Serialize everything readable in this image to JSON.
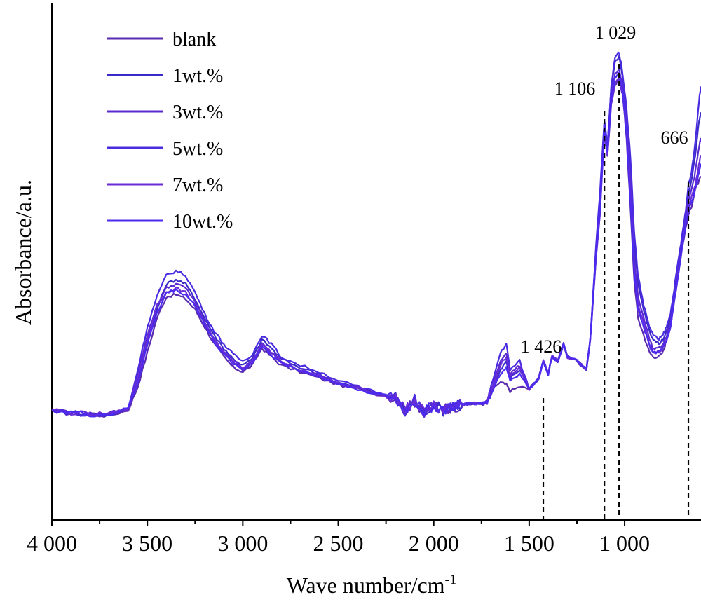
{
  "chart_data": {
    "type": "line",
    "xlabel": "Wave number/cm",
    "xlabel_superscript": "-1",
    "ylabel": "Absorbance/a.u.",
    "x_reversed": true,
    "xlim": [
      4000,
      600
    ],
    "ylim": [
      0,
      100
    ],
    "xticks": [
      {
        "value": 4000,
        "label": "4 000"
      },
      {
        "value": 3500,
        "label": "3 500"
      },
      {
        "value": 3000,
        "label": "3 000"
      },
      {
        "value": 2500,
        "label": "2 500"
      },
      {
        "value": 2000,
        "label": "2 000"
      },
      {
        "value": 1500,
        "label": "1 500"
      },
      {
        "value": 1000,
        "label": "1 000"
      }
    ],
    "y_tick_labels": false,
    "legend_position": "top-left",
    "annotations": [
      {
        "label": "1 426",
        "x": 1426
      },
      {
        "label": "1 106",
        "x": 1106
      },
      {
        "label": "1 029",
        "x": 1029
      },
      {
        "label": "666",
        "x": 666
      }
    ],
    "series": [
      {
        "name": "blank",
        "color": "#5a2bb0",
        "x": [
          4000,
          3900,
          3800,
          3700,
          3600,
          3550,
          3500,
          3450,
          3400,
          3350,
          3300,
          3250,
          3200,
          3150,
          3100,
          3050,
          3000,
          2950,
          2900,
          2850,
          2800,
          2700,
          2600,
          2500,
          2400,
          2300,
          2200,
          2150,
          2100,
          2050,
          2000,
          1950,
          1900,
          1850,
          1800,
          1750,
          1720,
          1700,
          1650,
          1620,
          1600,
          1550,
          1500,
          1450,
          1426,
          1400,
          1380,
          1350,
          1320,
          1300,
          1250,
          1200,
          1180,
          1150,
          1130,
          1106,
          1090,
          1070,
          1050,
          1029,
          1010,
          990,
          970,
          950,
          930,
          900,
          870,
          850,
          820,
          800,
          780,
          760,
          740,
          720,
          700,
          680,
          666,
          650,
          630,
          610,
          600
        ],
        "y": [
          12.5,
          11.8,
          11.8,
          11.3,
          12.5,
          18,
          26,
          34,
          39,
          39.5,
          38.5,
          36,
          32,
          28,
          25,
          22.5,
          21.5,
          23,
          27,
          25,
          23,
          21.5,
          20,
          18.5,
          17.5,
          16.3,
          15.5,
          12.5,
          14.5,
          12,
          13.5,
          12.5,
          13.3,
          13.6,
          14,
          14,
          14,
          17.5,
          19,
          18.5,
          17,
          18,
          17.5,
          20,
          24,
          21,
          25,
          24,
          28,
          25,
          24,
          22,
          29,
          48,
          58,
          78,
          72,
          84,
          88,
          90,
          86,
          76,
          60,
          43,
          34,
          30,
          26,
          25,
          25,
          26,
          29,
          32,
          38,
          44,
          50,
          55,
          58,
          60,
          64,
          66,
          67
        ]
      },
      {
        "name": "1wt.%",
        "color": "#3a2bc8",
        "x": [
          4000,
          3900,
          3800,
          3700,
          3600,
          3550,
          3500,
          3450,
          3400,
          3350,
          3300,
          3250,
          3200,
          3150,
          3100,
          3050,
          3000,
          2950,
          2900,
          2850,
          2800,
          2700,
          2600,
          2500,
          2400,
          2300,
          2200,
          2150,
          2100,
          2050,
          2000,
          1950,
          1900,
          1850,
          1800,
          1750,
          1720,
          1700,
          1650,
          1620,
          1600,
          1550,
          1500,
          1450,
          1426,
          1400,
          1380,
          1350,
          1320,
          1300,
          1250,
          1200,
          1180,
          1150,
          1130,
          1106,
          1090,
          1070,
          1050,
          1029,
          1010,
          990,
          970,
          950,
          930,
          900,
          870,
          850,
          820,
          800,
          780,
          760,
          740,
          720,
          700,
          680,
          666,
          650,
          630,
          610,
          600
        ],
        "y": [
          12.5,
          12,
          11.5,
          11.5,
          13,
          20,
          28,
          36,
          42,
          43,
          42,
          38.5,
          34,
          30,
          27,
          24.5,
          23,
          24.5,
          29,
          27,
          24.5,
          22.5,
          21,
          19,
          17.8,
          16.5,
          15.5,
          12.5,
          15,
          12,
          14,
          12.5,
          13.5,
          13.8,
          14.2,
          14,
          14.5,
          16,
          22,
          24,
          20,
          22,
          17.5,
          20,
          24,
          21,
          25,
          24,
          28,
          25,
          24,
          22,
          29,
          50,
          62,
          80,
          74,
          88,
          94,
          95,
          90,
          82,
          70,
          52,
          42,
          36,
          31,
          29,
          28,
          29,
          31,
          34,
          40,
          46,
          52,
          58,
          63,
          66,
          72,
          80,
          82
        ]
      },
      {
        "name": "3wt.%",
        "color": "#5b2bd0",
        "x": [
          4000,
          3900,
          3800,
          3700,
          3600,
          3550,
          3500,
          3450,
          3400,
          3350,
          3300,
          3250,
          3200,
          3150,
          3100,
          3050,
          3000,
          2950,
          2900,
          2850,
          2800,
          2700,
          2600,
          2500,
          2400,
          2300,
          2200,
          2150,
          2100,
          2050,
          2000,
          1950,
          1900,
          1850,
          1800,
          1750,
          1720,
          1700,
          1650,
          1620,
          1600,
          1550,
          1500,
          1450,
          1426,
          1400,
          1380,
          1350,
          1320,
          1300,
          1250,
          1200,
          1180,
          1150,
          1130,
          1106,
          1090,
          1070,
          1050,
          1029,
          1010,
          990,
          970,
          950,
          930,
          900,
          870,
          850,
          820,
          800,
          780,
          760,
          740,
          720,
          700,
          680,
          666,
          650,
          630,
          610,
          600
        ],
        "y": [
          12.5,
          12,
          11.5,
          11.5,
          13,
          21,
          30,
          37,
          41,
          42,
          41,
          38,
          33,
          29,
          26,
          24,
          22,
          24,
          28,
          26,
          24,
          22,
          20.5,
          18.8,
          17.6,
          16.4,
          15.5,
          12.5,
          14.8,
          12,
          13.8,
          12.5,
          13.5,
          13.8,
          14.2,
          14,
          14.5,
          17,
          24,
          26,
          21,
          23,
          17.5,
          20,
          24,
          21,
          25,
          24,
          28,
          25,
          24,
          22,
          29,
          49,
          60,
          79,
          73,
          86,
          91,
          92,
          88,
          79,
          66,
          48,
          39,
          34,
          29,
          27,
          27,
          28,
          30,
          33,
          39,
          45,
          51,
          57,
          61,
          64,
          68,
          74,
          76
        ]
      },
      {
        "name": "5wt.%",
        "color": "#4a2be0",
        "x": [
          4000,
          3900,
          3800,
          3700,
          3600,
          3550,
          3500,
          3450,
          3400,
          3350,
          3300,
          3250,
          3200,
          3150,
          3100,
          3050,
          3000,
          2950,
          2900,
          2850,
          2800,
          2700,
          2600,
          2500,
          2400,
          2300,
          2200,
          2150,
          2100,
          2050,
          2000,
          1950,
          1900,
          1850,
          1800,
          1750,
          1720,
          1700,
          1650,
          1620,
          1600,
          1550,
          1500,
          1450,
          1426,
          1400,
          1380,
          1350,
          1320,
          1300,
          1250,
          1200,
          1180,
          1150,
          1130,
          1106,
          1090,
          1070,
          1050,
          1029,
          1010,
          990,
          970,
          950,
          930,
          900,
          870,
          850,
          820,
          800,
          780,
          760,
          740,
          720,
          700,
          680,
          666,
          650,
          630,
          610,
          600
        ],
        "y": [
          12.5,
          12,
          11.5,
          11.5,
          13,
          22,
          32,
          39,
          44,
          45,
          44,
          40,
          35,
          31,
          28,
          25.5,
          24,
          25.5,
          30,
          28,
          25,
          23,
          21.5,
          19.5,
          18,
          16.7,
          15.5,
          12.5,
          15,
          12,
          14,
          12.5,
          13.5,
          13.8,
          14.2,
          14,
          14.5,
          18,
          26,
          28,
          22,
          24,
          17.5,
          20,
          24,
          21,
          25,
          24,
          28,
          25,
          24,
          22,
          29,
          51,
          63,
          80,
          74,
          88,
          95,
          96,
          91,
          83,
          72,
          54,
          44,
          37,
          32,
          30,
          29,
          30,
          32,
          35,
          41,
          47,
          53,
          59,
          65,
          68,
          75,
          85,
          88
        ]
      },
      {
        "name": "7wt.%",
        "color": "#6a2bd8",
        "x": [
          4000,
          3900,
          3800,
          3700,
          3600,
          3550,
          3500,
          3450,
          3400,
          3350,
          3300,
          3250,
          3200,
          3150,
          3100,
          3050,
          3000,
          2950,
          2900,
          2850,
          2800,
          2700,
          2600,
          2500,
          2400,
          2300,
          2200,
          2150,
          2100,
          2050,
          2000,
          1950,
          1900,
          1850,
          1800,
          1750,
          1720,
          1700,
          1650,
          1620,
          1600,
          1550,
          1500,
          1450,
          1426,
          1400,
          1380,
          1350,
          1320,
          1300,
          1250,
          1200,
          1180,
          1150,
          1130,
          1106,
          1090,
          1070,
          1050,
          1029,
          1010,
          990,
          970,
          950,
          930,
          900,
          870,
          850,
          820,
          800,
          780,
          760,
          740,
          720,
          700,
          680,
          666,
          650,
          630,
          610,
          600
        ],
        "y": [
          12.5,
          12,
          11.5,
          11.5,
          13,
          20,
          29,
          37,
          40,
          41,
          40,
          37,
          33,
          29,
          26,
          24,
          22.5,
          24,
          28,
          26,
          24,
          22,
          20.5,
          18.8,
          17.6,
          16.4,
          15.5,
          12.5,
          14.8,
          12,
          13.8,
          12.5,
          13.5,
          13.8,
          14.2,
          14,
          14.5,
          17,
          23,
          25,
          20.5,
          22.5,
          17.5,
          20,
          24,
          21,
          25,
          24,
          28,
          25,
          24,
          22,
          29,
          48,
          58,
          77,
          72,
          84,
          89,
          90,
          86,
          78,
          64,
          46,
          37,
          33,
          28,
          26,
          26,
          27,
          29,
          32,
          38,
          44,
          50,
          56,
          60,
          62,
          65,
          70,
          72
        ]
      },
      {
        "name": "10wt.%",
        "color": "#4b2bf0",
        "x": [
          4000,
          3900,
          3800,
          3700,
          3600,
          3550,
          3500,
          3450,
          3400,
          3350,
          3300,
          3250,
          3200,
          3150,
          3100,
          3050,
          3000,
          2950,
          2900,
          2850,
          2800,
          2700,
          2600,
          2500,
          2400,
          2300,
          2200,
          2150,
          2100,
          2050,
          2000,
          1950,
          1900,
          1850,
          1800,
          1750,
          1720,
          1700,
          1650,
          1620,
          1600,
          1550,
          1500,
          1450,
          1426,
          1400,
          1380,
          1350,
          1320,
          1300,
          1250,
          1200,
          1180,
          1150,
          1130,
          1106,
          1090,
          1070,
          1050,
          1029,
          1010,
          990,
          970,
          950,
          930,
          900,
          870,
          850,
          820,
          800,
          780,
          760,
          740,
          720,
          700,
          680,
          666,
          650,
          630,
          610,
          600
        ],
        "y": [
          12.5,
          12,
          11.5,
          11.5,
          13,
          19,
          28,
          35,
          40,
          40.5,
          39.5,
          37,
          32.5,
          28.5,
          25.5,
          23.5,
          22,
          23.5,
          27.5,
          25.5,
          23.5,
          21.8,
          20.3,
          18.7,
          17.5,
          16.3,
          15.5,
          12.5,
          14.6,
          12,
          13.6,
          12.5,
          13.4,
          13.7,
          14.1,
          14,
          14.3,
          16.5,
          21,
          22.5,
          19.5,
          21,
          17.5,
          20,
          24,
          21,
          25,
          24,
          28,
          25,
          24,
          22,
          29,
          49,
          59,
          78,
          73,
          85,
          90,
          91,
          87,
          77,
          62,
          45,
          36,
          32,
          27.5,
          26,
          26,
          27,
          29,
          32,
          38,
          44,
          50,
          56,
          59,
          61,
          64,
          68,
          70
        ]
      }
    ]
  }
}
